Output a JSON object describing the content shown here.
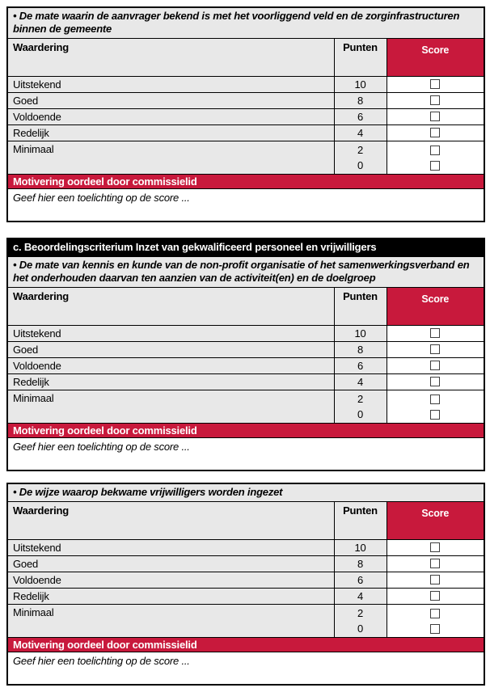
{
  "colors": {
    "accent_red": "#C8193C",
    "bar_black": "#000000",
    "row_gray": "#E8E8E8",
    "checkbox_border": "#3f3f3f"
  },
  "labels": {
    "waardering": "Waardering",
    "punten": "Punten",
    "score": "Score",
    "motivering": "Motivering oordeel door commissielid",
    "toelichting": "Geef hier een toelichting op de score ..."
  },
  "rating_scale": [
    {
      "label": "Uitstekend",
      "points": "10"
    },
    {
      "label": "Goed",
      "points": "8"
    },
    {
      "label": "Voldoende",
      "points": "6"
    },
    {
      "label": "Redelijk",
      "points": "4"
    },
    {
      "label": "Minimaal",
      "points": "2",
      "points_alt": "0"
    }
  ],
  "sections": [
    {
      "criterion": "• De mate waarin de aanvrager bekend is met het voorliggend veld en de zorginfrastructuren binnen de gemeente"
    },
    {
      "title_bar": "c. Beoordelingscriterium Inzet van gekwalificeerd personeel en vrijwilligers",
      "criterion": "• De mate van kennis en kunde van de non-profit organisatie of het samenwerkingsverband en het onderhouden daarvan ten aanzien van de activiteit(en) en de doelgroep"
    },
    {
      "criterion": "• De wijze waarop bekwame vrijwilligers worden ingezet"
    }
  ]
}
